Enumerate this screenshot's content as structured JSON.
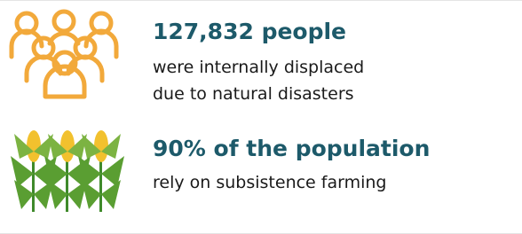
{
  "items": [
    {
      "headline": "127,832 people",
      "lines": [
        "were internally displaced",
        "due to natural disasters"
      ]
    },
    {
      "headline": "90% of the population",
      "lines": [
        "rely on subsistence farming"
      ]
    }
  ]
}
